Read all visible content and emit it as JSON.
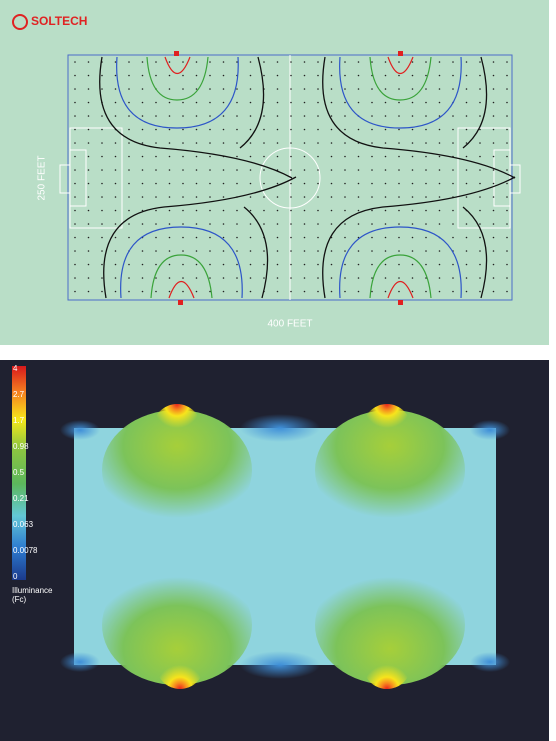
{
  "header": {
    "logo": "SOLTECH"
  },
  "field": {
    "height_label": "250 FEET",
    "width_label": "400 FEET"
  },
  "legend": {
    "labels": [
      "4",
      "2.7",
      "1.7",
      "0.98",
      "0.5",
      "0.21",
      "0.063",
      "0.0078",
      "0"
    ],
    "title": [
      "Illuminance",
      "(Fc)"
    ]
  }
}
